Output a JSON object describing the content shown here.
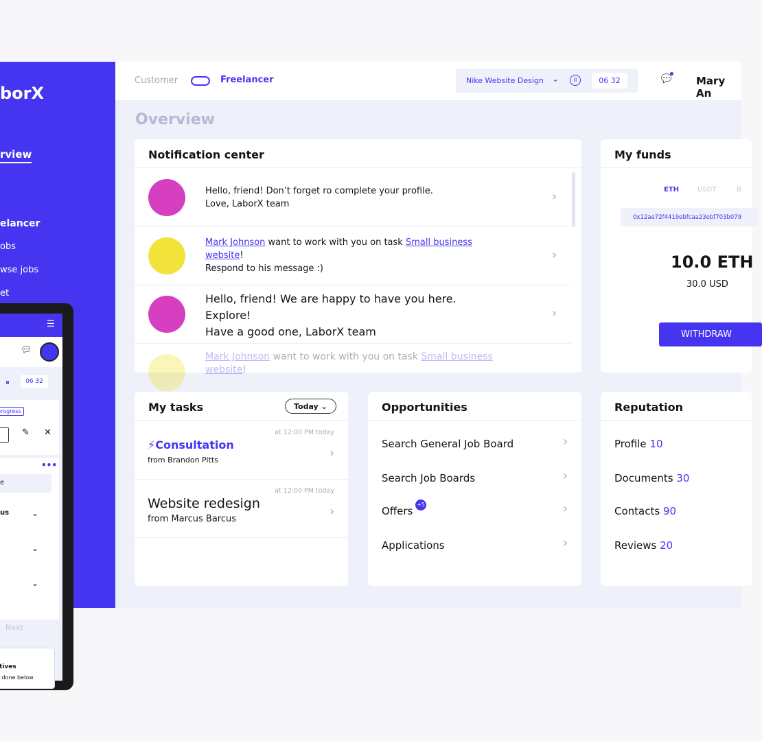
{
  "sidebar": {
    "logo": "borX",
    "items": [
      "rview",
      "elancer",
      "obs",
      "wse jobs",
      "et"
    ]
  },
  "header": {
    "customer": "Customer",
    "freelancer": "Freelancer",
    "task": "Nike Website Design",
    "timer_h": "06",
    "timer_m": "32",
    "user": "Mary An"
  },
  "page_title": "Overview",
  "notifications": {
    "title": "Notification center",
    "items": [
      {
        "line1": "Hello, friend! Don’t forget ro complete your profile.",
        "line2": "Love, LaborX team"
      },
      {
        "name": "Mark Johnson",
        "mid": " want to work with you on task ",
        "task": "Small business website",
        "end": "!",
        "line2": "Respond to his message :)"
      },
      {
        "line1": "Hello, friend! We are happy to have you here.",
        "line2": "Explore!",
        "line3": "Have a good one, LaborX team"
      },
      {
        "name": "Mark Johnson",
        "mid": " want to work with you on task ",
        "task": "Small business website",
        "end": "!"
      }
    ]
  },
  "funds": {
    "title": "My funds",
    "tabs": [
      "ETH",
      "USDT",
      "B"
    ],
    "address": "0x12ae72f4419ebfcaa23ebf703b079",
    "amount": "10.0 ETH",
    "usd": "30.0 USD",
    "withdraw": "WITHDRAW"
  },
  "tasks": {
    "title": "My tasks",
    "filter": "Today",
    "items": [
      {
        "name": "Consultation",
        "from": "from Brandon Pitts",
        "time": "at 12:00 PM today"
      },
      {
        "name": "Website redesign",
        "from": "from Marcus Barcus",
        "time": "at 12:00 PM today"
      }
    ]
  },
  "opportunities": {
    "title": "Opportunities",
    "items": [
      "Search General Job Board",
      "Search Job Boards",
      "Offers",
      "Applications"
    ],
    "offers_badge": "+5"
  },
  "reputation": {
    "title": "Reputation",
    "items": [
      {
        "label": "Profile ",
        "value": "10"
      },
      {
        "label": "Documents ",
        "value": "30"
      },
      {
        "label": "Contacts ",
        "value": "90"
      },
      {
        "label": "Reviews ",
        "value": "20"
      }
    ]
  },
  "mobile": {
    "timer": "06 32",
    "badge": "progress",
    "list_item": "e",
    "row": "us",
    "next": "Next",
    "card_title": "tives",
    "card_text": "e done below"
  },
  "colors": {
    "brand": "#4535f0"
  }
}
